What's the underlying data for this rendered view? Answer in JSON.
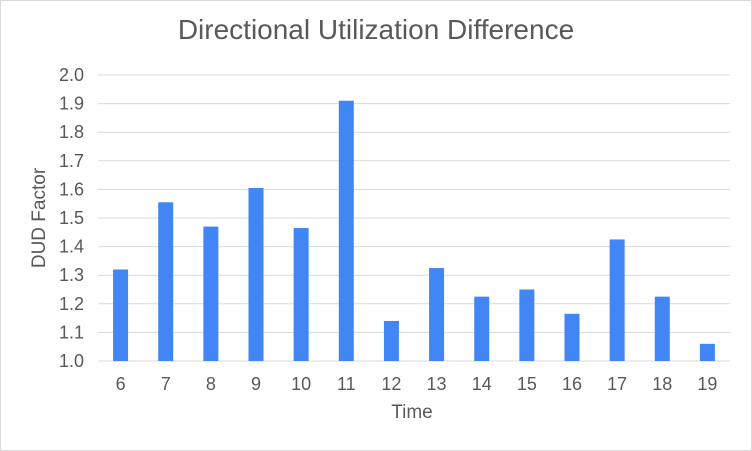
{
  "chart_data": {
    "type": "bar",
    "title": "Directional Utilization Difference",
    "xlabel": "Time",
    "ylabel": "DUD Factor",
    "categories": [
      "6",
      "7",
      "8",
      "9",
      "10",
      "11",
      "12",
      "13",
      "14",
      "15",
      "16",
      "17",
      "18",
      "19"
    ],
    "values": [
      1.32,
      1.555,
      1.47,
      1.605,
      1.465,
      1.91,
      1.14,
      1.325,
      1.225,
      1.25,
      1.165,
      1.425,
      1.225,
      1.06
    ],
    "ylim": [
      1.0,
      2.0
    ],
    "yticks": [
      "1.0",
      "1.1",
      "1.2",
      "1.3",
      "1.4",
      "1.5",
      "1.6",
      "1.7",
      "1.8",
      "1.9",
      "2.0"
    ],
    "grid": true,
    "legend": "none",
    "colors": {
      "bar": "#4285f4",
      "grid": "#d9d9d9",
      "text": "#595959"
    }
  }
}
